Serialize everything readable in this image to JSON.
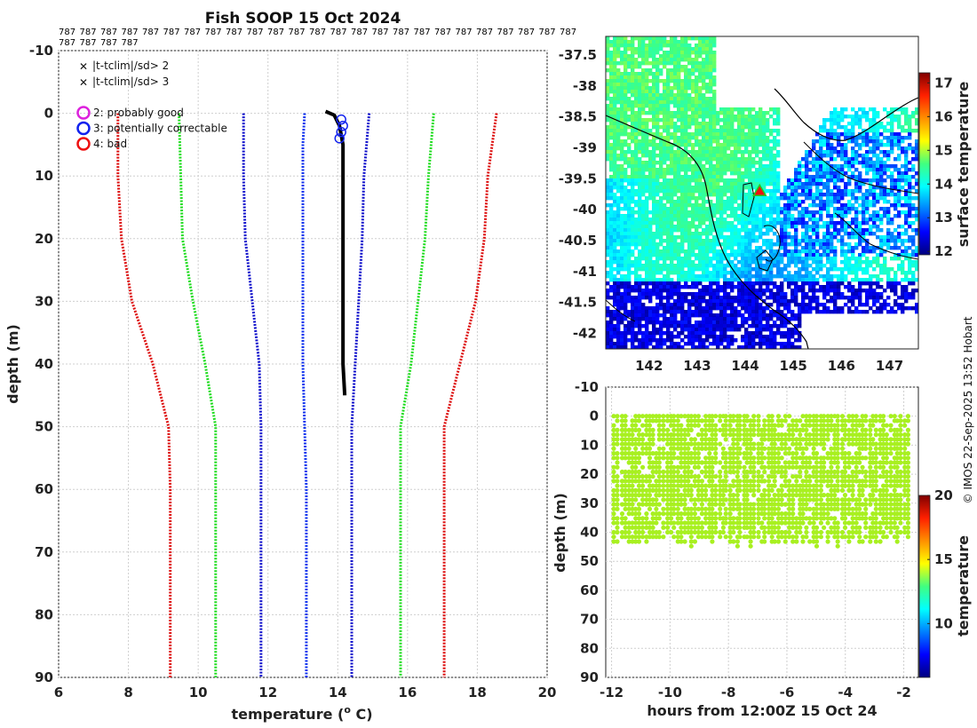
{
  "title": "Fish SOOP 15 Oct 2024",
  "id_label": "787",
  "id_count": 29,
  "credit": "© IMOS 22-Sep-2025 13:52 Hobart",
  "chart_data": [
    {
      "type": "line",
      "name": "profile",
      "xlabel": "temperature (",
      "xlabel_sup": "o",
      "xlabel_tail": " C)",
      "ylabel": "depth (m)",
      "xlim": [
        6,
        20
      ],
      "ylim": [
        -10,
        90
      ],
      "xticks": [
        "6",
        "8",
        "10",
        "12",
        "14",
        "16",
        "18",
        "20"
      ],
      "yticks": [
        "-10",
        "0",
        "10",
        "20",
        "30",
        "40",
        "50",
        "60",
        "70",
        "80",
        "90"
      ],
      "legend_flags": [
        {
          "label": "|t-tclim|/sd> 2",
          "color": "#22cc22"
        },
        {
          "label": "|t-tclim|/sd> 3",
          "color": "#ee1111"
        }
      ],
      "legend_qc": [
        {
          "label": "2: probably good",
          "color": "#dd22dd"
        },
        {
          "label": "3: potentially correctable",
          "color": "#1122ee"
        },
        {
          "label": "4: bad",
          "color": "#ee1111"
        }
      ],
      "series": [
        {
          "name": "clim -3sd",
          "color": "#dd1111",
          "depth": [
            0,
            10,
            20,
            30,
            40,
            50,
            60,
            70,
            80,
            90
          ],
          "temp": [
            7.7,
            7.7,
            7.8,
            8.1,
            8.7,
            9.15,
            9.2,
            9.2,
            9.2,
            9.2
          ]
        },
        {
          "name": "clim -2sd",
          "color": "#22dd22",
          "depth": [
            0,
            10,
            20,
            30,
            40,
            50,
            60,
            70,
            80,
            90
          ],
          "temp": [
            9.45,
            9.5,
            9.55,
            9.85,
            10.2,
            10.5,
            10.5,
            10.5,
            10.5,
            10.5
          ]
        },
        {
          "name": "clim -1sd",
          "color": "#1111cc",
          "depth": [
            0,
            10,
            20,
            30,
            40,
            50,
            60,
            70,
            80,
            90
          ],
          "temp": [
            11.3,
            11.3,
            11.35,
            11.55,
            11.75,
            11.8,
            11.8,
            11.8,
            11.8,
            11.8
          ]
        },
        {
          "name": "clim mean",
          "color": "#1133ee",
          "depth": [
            0,
            5,
            10,
            20,
            30,
            40,
            50,
            60,
            70,
            80,
            90
          ],
          "temp": [
            13.05,
            13.0,
            13.0,
            13.0,
            13.0,
            13.0,
            13.05,
            13.1,
            13.1,
            13.1,
            13.1
          ]
        },
        {
          "name": "clim +1sd",
          "color": "#1111cc",
          "depth": [
            0,
            10,
            20,
            30,
            40,
            50,
            60,
            70,
            80,
            90
          ],
          "temp": [
            14.9,
            14.75,
            14.7,
            14.6,
            14.5,
            14.4,
            14.4,
            14.4,
            14.4,
            14.4
          ]
        },
        {
          "name": "clim +2sd",
          "color": "#22dd22",
          "depth": [
            0,
            10,
            20,
            30,
            40,
            50,
            60,
            70,
            80,
            90
          ],
          "temp": [
            16.75,
            16.6,
            16.5,
            16.3,
            16.1,
            15.8,
            15.8,
            15.8,
            15.8,
            15.8
          ]
        },
        {
          "name": "clim +3sd",
          "color": "#dd1111",
          "depth": [
            0,
            10,
            20,
            30,
            40,
            50,
            60,
            70,
            80,
            90
          ],
          "temp": [
            18.55,
            18.3,
            18.2,
            17.95,
            17.5,
            17.05,
            17.05,
            17.05,
            17.05,
            17.05
          ]
        },
        {
          "name": "observed",
          "color": "#000000",
          "depth": [
            -0.3,
            0.3,
            2,
            5,
            10,
            20,
            30,
            40,
            45
          ],
          "temp": [
            13.65,
            13.9,
            14.05,
            14.15,
            14.15,
            14.15,
            14.15,
            14.15,
            14.2
          ]
        }
      ],
      "qc_circles": {
        "color": "#1122ee",
        "depth": [
          1,
          2,
          3,
          4
        ],
        "temp": [
          14.1,
          14.15,
          14.1,
          14.05
        ]
      }
    },
    {
      "type": "heatmap",
      "name": "map",
      "xticks": [
        "142",
        "143",
        "144",
        "145",
        "146",
        "147"
      ],
      "yticks": [
        "-37.5",
        "-38",
        "-38.5",
        "-39",
        "-39.5",
        "-40",
        "-40.5",
        "-41",
        "-41.5",
        "-42"
      ],
      "xlim": [
        141.1,
        147.6
      ],
      "ylim": [
        -42.25,
        -37.2
      ],
      "station": {
        "lon": 144.3,
        "lat": -39.7
      },
      "colorbar_label": "surface temperature",
      "colorbar_ticks": [
        "12",
        "13",
        "14",
        "15",
        "16",
        "17"
      ],
      "clim": [
        11.9,
        17.3
      ]
    },
    {
      "type": "scatter",
      "name": "time-depth",
      "xlabel": "hours from 12:00Z 15 Oct 24",
      "ylabel": "depth (m)",
      "xlim": [
        -12.2,
        -1.5
      ],
      "ylim": [
        -10,
        90
      ],
      "xticks": [
        "-12",
        "-10",
        "-8",
        "-6",
        "-4",
        "-2"
      ],
      "yticks": [
        "-10",
        "0",
        "10",
        "20",
        "30",
        "40",
        "50",
        "60",
        "70",
        "80",
        "90"
      ],
      "color_value": 15.5,
      "depth_range": [
        0,
        45
      ],
      "time_range": [
        -11.9,
        -1.85
      ],
      "casts": 85,
      "colorbar_label": "temperature",
      "colorbar_ticks": [
        "10",
        "15",
        "20"
      ],
      "clim": [
        5.8,
        20
      ]
    }
  ]
}
